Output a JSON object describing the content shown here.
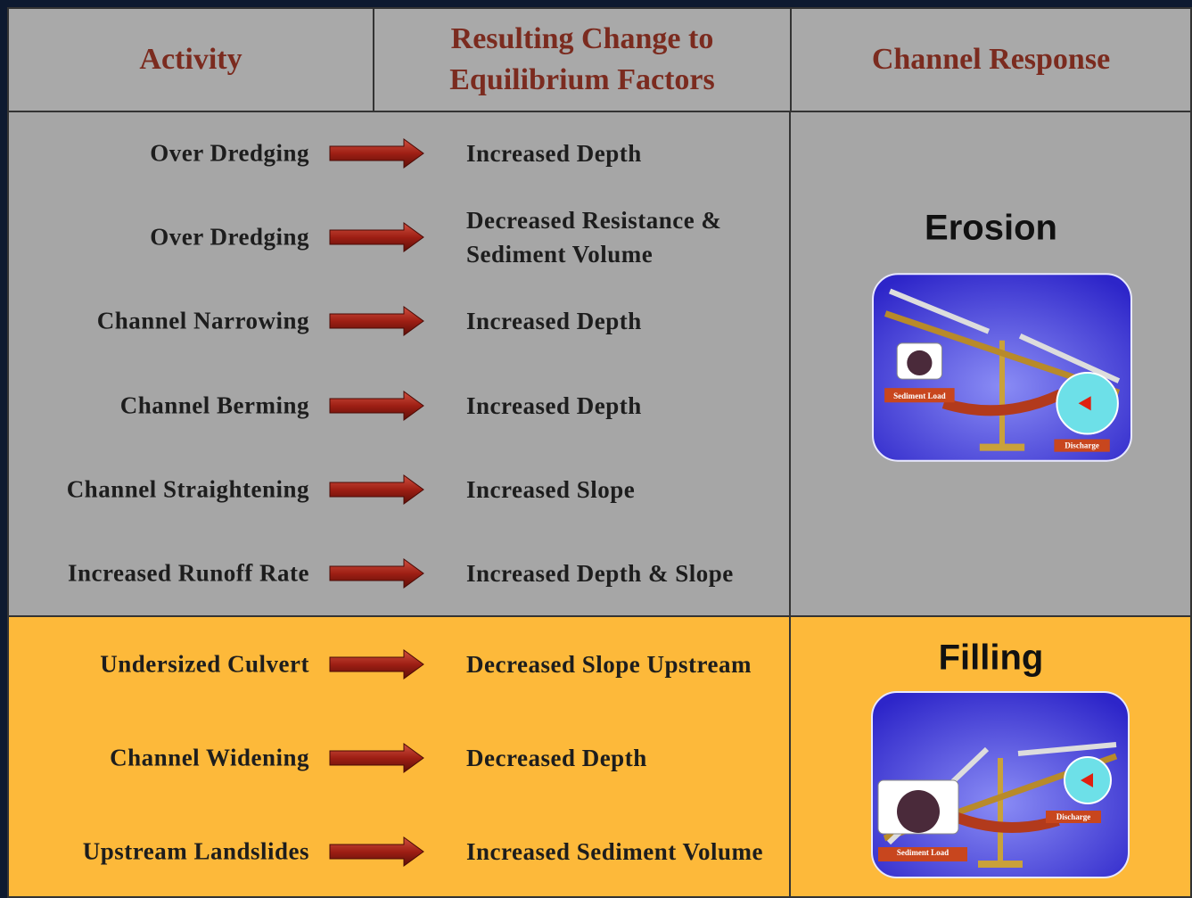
{
  "header": {
    "activity": "Activity",
    "change": "Resulting Change to Equilibrium Factors",
    "response": "Channel Response"
  },
  "groups": [
    {
      "response": "Erosion",
      "rows": [
        {
          "activity": "Over Dredging",
          "change": "Increased Depth"
        },
        {
          "activity": "Over Dredging",
          "change": "Decreased Resistance & Sediment Volume"
        },
        {
          "activity": "Channel Narrowing",
          "change": "Increased Depth"
        },
        {
          "activity": "Channel Berming",
          "change": "Increased Depth"
        },
        {
          "activity": "Channel Straightening",
          "change": "Increased Slope"
        },
        {
          "activity": "Increased Runoff Rate",
          "change": "Increased Depth & Slope"
        }
      ],
      "scale": {
        "sediment": "Sediment Load",
        "discharge": "Discharge"
      }
    },
    {
      "response": "Filling",
      "rows": [
        {
          "activity": "Undersized Culvert",
          "change": "Decreased Slope Upstream"
        },
        {
          "activity": "Channel Widening",
          "change": "Decreased Depth"
        },
        {
          "activity": "Upstream Landslides",
          "change": "Increased Sediment Volume"
        }
      ],
      "scale": {
        "sediment": "Sediment Load",
        "discharge": "Discharge"
      }
    }
  ]
}
